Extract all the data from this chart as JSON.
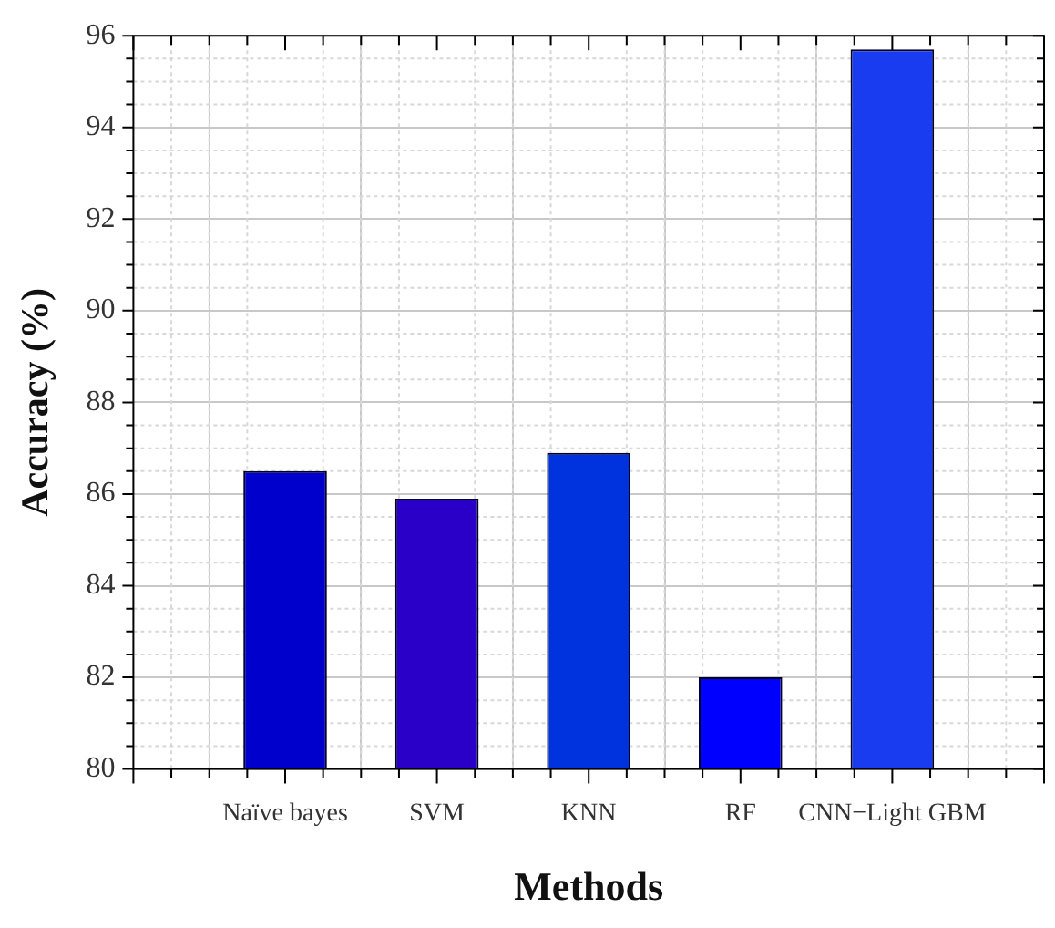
{
  "chart_data": {
    "type": "bar",
    "xlabel": "Methods",
    "ylabel": "Accuracy (%)",
    "categories": [
      "Naïve bayes",
      "SVM",
      "KNN",
      "RF",
      "CNN−Light GBM"
    ],
    "values": [
      86.5,
      85.9,
      86.9,
      82.0,
      95.7
    ],
    "colors": [
      "#0000cc",
      "#2a00c8",
      "#0033dd",
      "#0000ff",
      "#1a3cf0"
    ],
    "ylim": [
      80,
      96
    ],
    "yticks": [
      80,
      82,
      84,
      86,
      88,
      90,
      92,
      94,
      96
    ],
    "grid": true
  }
}
